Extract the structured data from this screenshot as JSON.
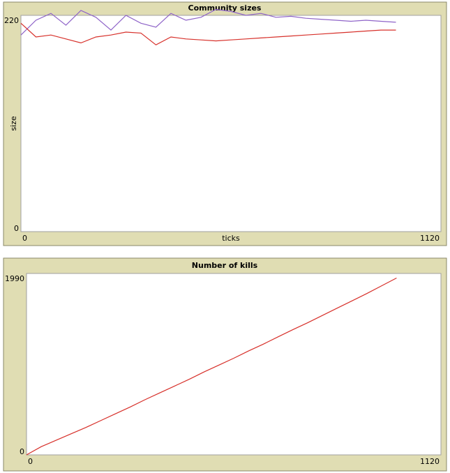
{
  "chart_data": [
    {
      "type": "line",
      "title": "Community sizes",
      "xlabel": "ticks",
      "ylabel": "size",
      "xlim": [
        0,
        1120
      ],
      "ylim": [
        0,
        220
      ],
      "xticks": [
        0,
        1120
      ],
      "yticks": [
        0,
        220
      ],
      "series": [
        {
          "color": "#8e63c8",
          "x": [
            0,
            40,
            80,
            120,
            160,
            200,
            240,
            280,
            320,
            360,
            400,
            440,
            480,
            520,
            560,
            600,
            640,
            680,
            720,
            760,
            800,
            840,
            880,
            920,
            960,
            1000
          ],
          "values": [
            200,
            215,
            222,
            210,
            225,
            218,
            205,
            220,
            212,
            208,
            222,
            215,
            218,
            226,
            224,
            220,
            222,
            218,
            219,
            217,
            216,
            215,
            214,
            215,
            214,
            213
          ]
        },
        {
          "color": "#d7302a",
          "x": [
            0,
            40,
            80,
            120,
            160,
            200,
            240,
            280,
            320,
            360,
            400,
            440,
            480,
            520,
            560,
            600,
            640,
            680,
            720,
            760,
            800,
            840,
            880,
            920,
            960,
            1000
          ],
          "values": [
            212,
            198,
            200,
            196,
            192,
            198,
            200,
            203,
            202,
            190,
            198,
            196,
            195,
            194,
            195,
            196,
            197,
            198,
            199,
            200,
            201,
            202,
            203,
            204,
            205,
            205
          ]
        }
      ]
    },
    {
      "type": "line",
      "title": "Number of kills",
      "xlim": [
        0,
        1120
      ],
      "ylim": [
        0,
        1990
      ],
      "xticks": [
        0,
        1120
      ],
      "yticks": [
        0,
        1990
      ],
      "series": [
        {
          "color": "#d7302a",
          "x": [
            0,
            40,
            80,
            120,
            160,
            200,
            240,
            280,
            320,
            360,
            400,
            440,
            480,
            520,
            560,
            600,
            640,
            680,
            720,
            760,
            800,
            840,
            880,
            920,
            960,
            1000
          ],
          "values": [
            0,
            90,
            160,
            230,
            300,
            375,
            450,
            525,
            605,
            680,
            755,
            830,
            910,
            985,
            1060,
            1140,
            1215,
            1295,
            1375,
            1450,
            1530,
            1610,
            1690,
            1770,
            1855,
            1940
          ]
        }
      ]
    }
  ]
}
